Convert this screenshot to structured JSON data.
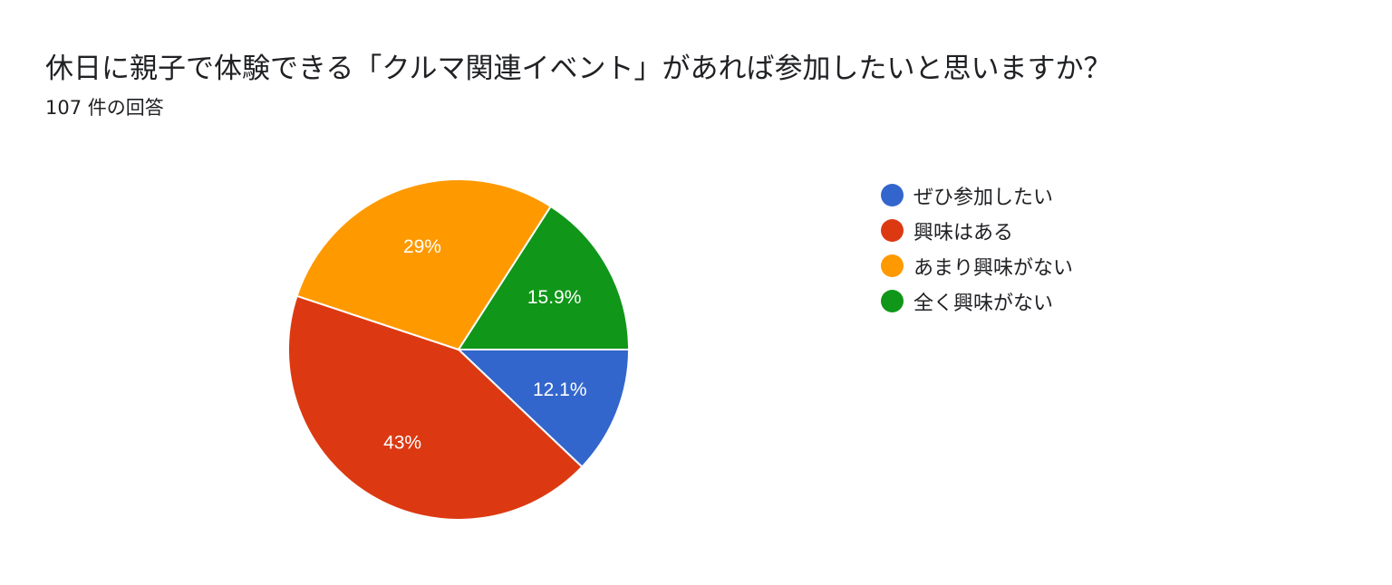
{
  "header": {
    "title": "休日に親子で体験できる「クルマ関連イベント」があれば参加したいと思いますか？",
    "response_count": "107 件の回答"
  },
  "chart_data": {
    "type": "pie",
    "title": "休日に親子で体験できる「クルマ関連イベント」があれば参加したいと思いますか？",
    "categories": [
      "ぜひ参加したい",
      "興味はある",
      "あまり興味がない",
      "全く興味がない"
    ],
    "values": [
      12.1,
      43,
      29,
      15.9
    ],
    "value_labels": [
      "12.1%",
      "43%",
      "29%",
      "15.9%"
    ],
    "colors": [
      "#3366cc",
      "#dc3912",
      "#ff9900",
      "#109618"
    ],
    "legend_position": "right",
    "start_angle": "3 o'clock, clockwise"
  }
}
